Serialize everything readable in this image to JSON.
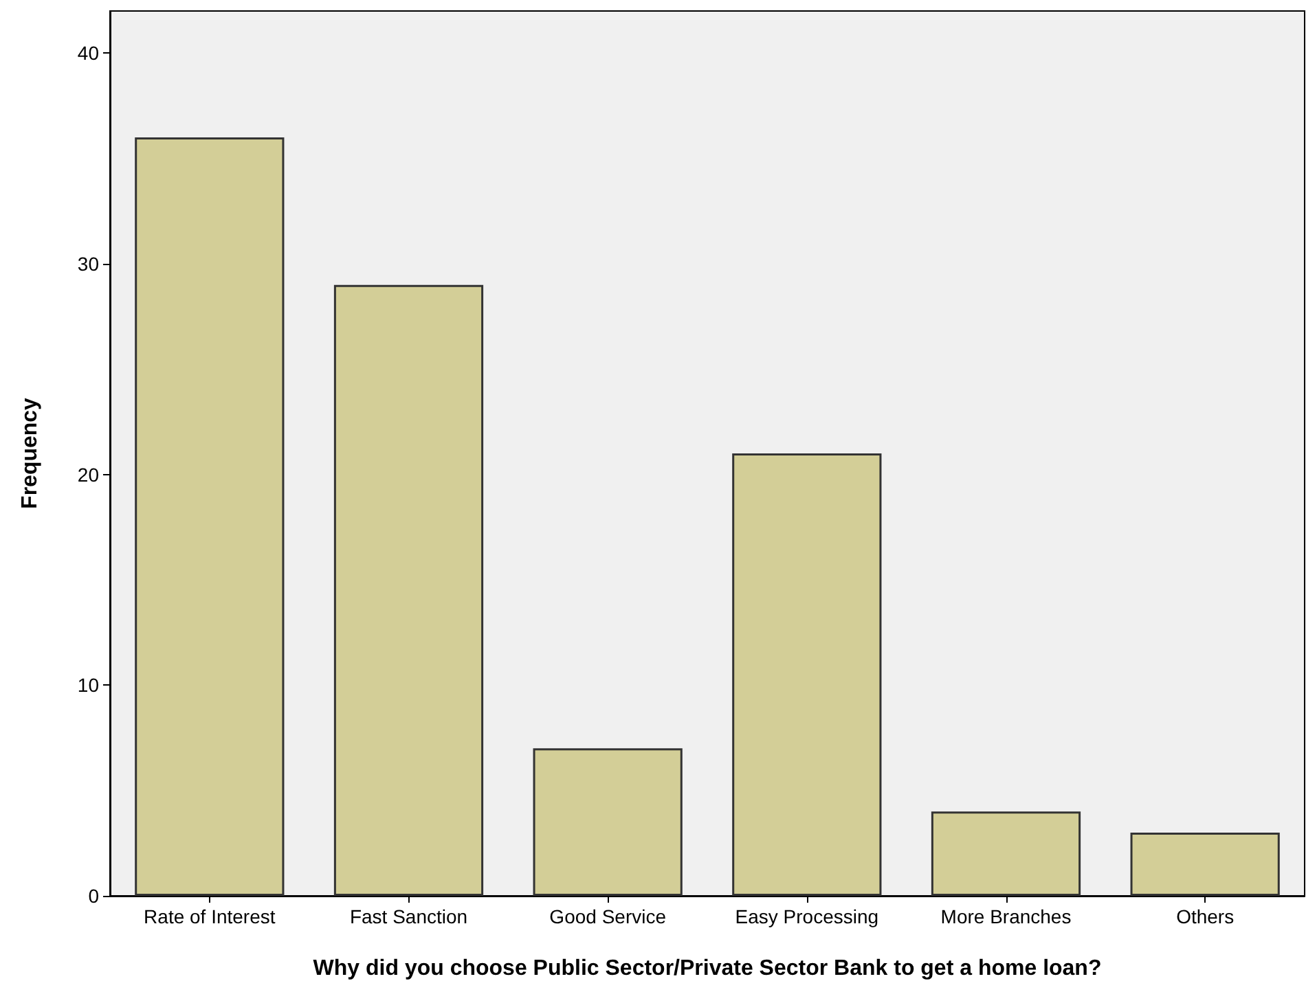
{
  "chart_data": {
    "type": "bar",
    "xlabel": "Why did you choose Public Sector/Private Sector Bank to get a home loan?",
    "ylabel": "Frequency",
    "categories": [
      "Rate of Interest",
      "Fast Sanction",
      "Good Service",
      "Easy Processing",
      "More Branches",
      "Others"
    ],
    "values": [
      36,
      29,
      7,
      21,
      4,
      3
    ],
    "color": "#d3ce97",
    "ylim": [
      0,
      42
    ],
    "yticks": [
      0,
      10,
      20,
      30,
      40
    ],
    "grid": false
  }
}
